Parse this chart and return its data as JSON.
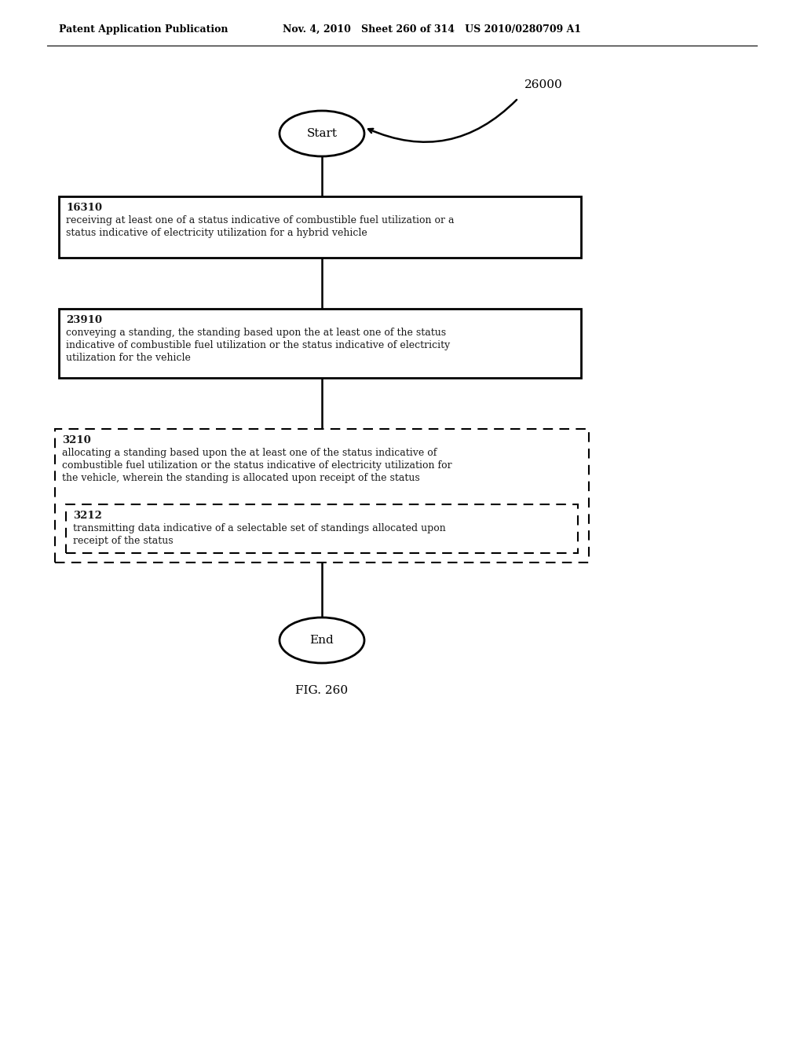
{
  "header_left": "Patent Application Publication",
  "header_mid": "Nov. 4, 2010   Sheet 260 of 314   US 2010/0280709 A1",
  "fig_label": "FIG. 260",
  "diagram_label": "26000",
  "start_label": "Start",
  "end_label": "End",
  "box1_id": "16310",
  "box1_line1": "receiving at least one of a status indicative of combustible fuel utilization or a",
  "box1_line2": "status indicative of electricity utilization for a hybrid vehicle",
  "box2_id": "23910",
  "box2_line1": "conveying a standing, the standing based upon the at least one of the status",
  "box2_line2": "indicative of combustible fuel utilization or the status indicative of electricity",
  "box2_line3": "utilization for the vehicle",
  "outer_box_id": "3210",
  "outer_line1": "allocating a standing based upon the at least one of the status indicative of",
  "outer_line2": "combustible fuel utilization or the status indicative of electricity utilization for",
  "outer_line3": "the vehicle, wherein the standing is allocated upon receipt of the status",
  "inner_box_id": "3212",
  "inner_line1": "transmitting data indicative of a selectable set of standings allocated upon",
  "inner_line2": "receipt of the status",
  "bg_color": "#ffffff",
  "text_color": "#1a1a1a",
  "line_color": "#1a1a1a"
}
